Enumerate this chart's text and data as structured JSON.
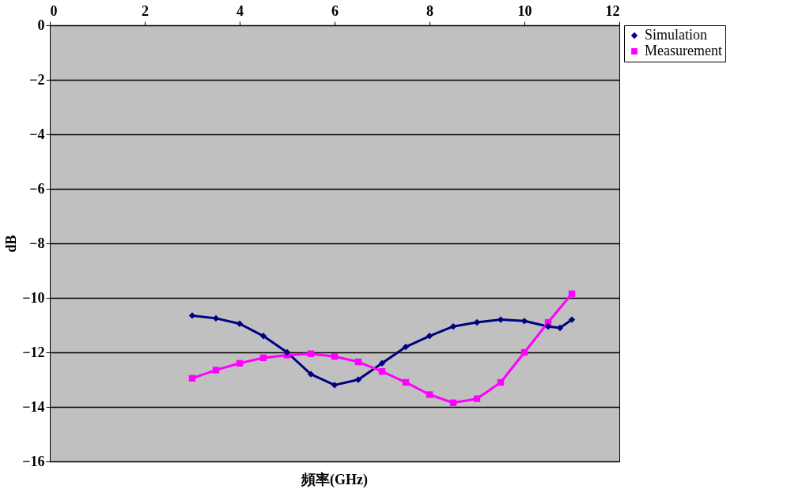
{
  "chart_data": {
    "type": "line",
    "xlabel": "頻率(GHz)",
    "ylabel": "dB",
    "xlim": [
      0,
      12
    ],
    "xticks": [
      0,
      2,
      4,
      6,
      8,
      10,
      12
    ],
    "ylim": [
      -16,
      0
    ],
    "yticks": [
      -16,
      -14,
      -12,
      -10,
      -8,
      -6,
      -4,
      -2,
      0
    ],
    "grid": "y",
    "legend": "top right",
    "x": [
      3,
      3.5,
      4,
      4.5,
      5,
      5.5,
      6,
      6.5,
      7,
      7.5,
      8,
      8.5,
      9,
      9.5,
      10,
      10.5,
      10.75,
      11
    ],
    "series": [
      {
        "name": "Simulation",
        "color": "#000080",
        "marker": "diamond",
        "values": [
          -10.65,
          -10.75,
          -10.95,
          -11.4,
          -12.0,
          -12.8,
          -13.2,
          -13.0,
          -12.4,
          -11.8,
          -11.4,
          -11.05,
          -10.9,
          -10.8,
          -10.85,
          -11.05,
          -11.1,
          -10.8
        ]
      },
      {
        "name": "Measurement",
        "color": "#ff00ff",
        "marker": "square",
        "x": [
          3,
          3.5,
          4,
          4.5,
          5,
          5.5,
          6,
          6.5,
          7,
          7.5,
          8,
          8.5,
          9,
          9.5,
          10,
          10.5,
          11
        ],
        "values": [
          -12.95,
          -12.65,
          -12.4,
          -12.2,
          -12.1,
          -12.05,
          -12.15,
          -12.35,
          -12.7,
          -13.1,
          -13.55,
          -13.85,
          -13.7,
          -13.1,
          -12.0,
          -10.9,
          -9.85
        ]
      }
    ]
  }
}
